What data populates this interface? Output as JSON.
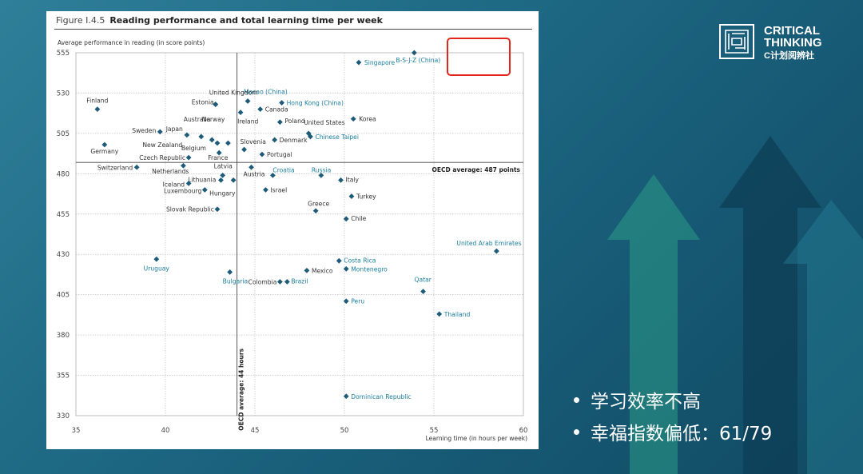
{
  "figure": {
    "number": "Figure I.4.5",
    "title": "Reading performance and total learning time per week"
  },
  "logo": {
    "line1": "CRITICAL",
    "line2": "THINKING",
    "line3": "C计划阅辨社"
  },
  "bullets": [
    "学习效率不高",
    "幸福指数偏低：61/79"
  ],
  "colors": {
    "marker": "#1d5b78",
    "teal_label": "#1b7f9e",
    "highlight": "#e2261c"
  },
  "chart_data": {
    "type": "scatter",
    "ylabel": "Average performance in reading (in score points)",
    "xlabel": "Learning time (in hours per week)",
    "xlim": [
      35,
      60
    ],
    "ylim": [
      330,
      555
    ],
    "x_ticks": [
      "35",
      "40",
      "45",
      "50",
      "55",
      "60"
    ],
    "y_ticks": [
      "330",
      "355",
      "380",
      "405",
      "430",
      "455",
      "480",
      "505",
      "530",
      "555"
    ],
    "grid": true,
    "reference_lines": [
      {
        "axis": "y",
        "value": 487,
        "label": "OECD average: 487 points"
      },
      {
        "axis": "x",
        "value": 44,
        "label": "OECD average: 44 hours"
      }
    ],
    "points": [
      {
        "name": "B-S-J-Z (China)",
        "x": 53.9,
        "y": 555,
        "partner": true
      },
      {
        "name": "Singapore",
        "x": 50.8,
        "y": 549,
        "partner": true
      },
      {
        "name": "Macao (China)",
        "x": 44.6,
        "y": 525,
        "partner": true
      },
      {
        "name": "Hong Kong (China)",
        "x": 46.5,
        "y": 524,
        "partner": true
      },
      {
        "name": "United Kingdom",
        "x": 42.8,
        "y": 523,
        "partner": false
      },
      {
        "name": "Estonia",
        "x": 42.8,
        "y": 523,
        "partner": false
      },
      {
        "name": "Finland",
        "x": 36.2,
        "y": 520,
        "partner": false
      },
      {
        "name": "Canada",
        "x": 45.3,
        "y": 520,
        "partner": false
      },
      {
        "name": "Ireland",
        "x": 44.2,
        "y": 518,
        "partner": false
      },
      {
        "name": "Korea",
        "x": 50.5,
        "y": 514,
        "partner": false
      },
      {
        "name": "Poland",
        "x": 46.4,
        "y": 512,
        "partner": false
      },
      {
        "name": "Norway",
        "x": 43.5,
        "y": 499,
        "partner": false
      },
      {
        "name": "Sweden",
        "x": 39.7,
        "y": 506,
        "partner": false
      },
      {
        "name": "Australia",
        "x": 42.0,
        "y": 503,
        "partner": false
      },
      {
        "name": "United States",
        "x": 48.0,
        "y": 505,
        "partner": false
      },
      {
        "name": "Japan",
        "x": 41.2,
        "y": 504,
        "partner": false
      },
      {
        "name": "Chinese Taipei",
        "x": 48.1,
        "y": 503,
        "partner": true
      },
      {
        "name": "Denmark",
        "x": 46.1,
        "y": 501,
        "partner": false
      },
      {
        "name": "New Zealand",
        "x": 42.6,
        "y": 501,
        "partner": false
      },
      {
        "name": "Belgium",
        "x": 42.9,
        "y": 499,
        "partner": false
      },
      {
        "name": "Slovenia",
        "x": 44.4,
        "y": 495,
        "partner": false
      },
      {
        "name": "Germany",
        "x": 36.6,
        "y": 498,
        "partner": false
      },
      {
        "name": "France",
        "x": 43.0,
        "y": 493,
        "partner": false
      },
      {
        "name": "Portugal",
        "x": 45.4,
        "y": 492,
        "partner": false
      },
      {
        "name": "Czech Republic",
        "x": 41.3,
        "y": 490,
        "partner": false
      },
      {
        "name": "Switzerland",
        "x": 38.4,
        "y": 484,
        "partner": false
      },
      {
        "name": "Netherlands",
        "x": 41.0,
        "y": 485,
        "partner": false
      },
      {
        "name": "Austria",
        "x": 44.8,
        "y": 484,
        "partner": false
      },
      {
        "name": "Latvia",
        "x": 43.2,
        "y": 479,
        "partner": false
      },
      {
        "name": "Croatia",
        "x": 46.0,
        "y": 479,
        "partner": true
      },
      {
        "name": "Russia",
        "x": 48.7,
        "y": 479,
        "partner": true
      },
      {
        "name": "Lithuania",
        "x": 43.1,
        "y": 476,
        "partner": false
      },
      {
        "name": "Italy",
        "x": 49.8,
        "y": 476,
        "partner": false
      },
      {
        "name": "Iceland",
        "x": 41.3,
        "y": 474,
        "partner": false
      },
      {
        "name": "Hungary",
        "x": 43.8,
        "y": 476,
        "partner": false
      },
      {
        "name": "Luxembourg",
        "x": 42.2,
        "y": 470,
        "partner": false
      },
      {
        "name": "Israel",
        "x": 45.6,
        "y": 470,
        "partner": false
      },
      {
        "name": "Turkey",
        "x": 50.4,
        "y": 466,
        "partner": false
      },
      {
        "name": "Slovak Republic",
        "x": 42.9,
        "y": 458,
        "partner": false
      },
      {
        "name": "Greece",
        "x": 48.4,
        "y": 457,
        "partner": false
      },
      {
        "name": "Chile",
        "x": 50.1,
        "y": 452,
        "partner": false
      },
      {
        "name": "United Arab Emirates",
        "x": 58.5,
        "y": 432,
        "partner": true
      },
      {
        "name": "Uruguay",
        "x": 39.5,
        "y": 427,
        "partner": true
      },
      {
        "name": "Costa Rica",
        "x": 49.7,
        "y": 426,
        "partner": true
      },
      {
        "name": "Mexico",
        "x": 47.9,
        "y": 420,
        "partner": false
      },
      {
        "name": "Montenegro",
        "x": 50.1,
        "y": 421,
        "partner": true
      },
      {
        "name": "Bulgaria",
        "x": 43.6,
        "y": 419,
        "partner": true
      },
      {
        "name": "Colombia",
        "x": 46.4,
        "y": 413,
        "partner": false
      },
      {
        "name": "Brazil",
        "x": 46.8,
        "y": 413,
        "partner": true
      },
      {
        "name": "Qatar",
        "x": 54.4,
        "y": 407,
        "partner": true
      },
      {
        "name": "Peru",
        "x": 50.1,
        "y": 401,
        "partner": true
      },
      {
        "name": "Thailand",
        "x": 55.3,
        "y": 393,
        "partner": true
      },
      {
        "name": "Dominican Republic",
        "x": 50.1,
        "y": 342,
        "partner": true
      }
    ]
  }
}
